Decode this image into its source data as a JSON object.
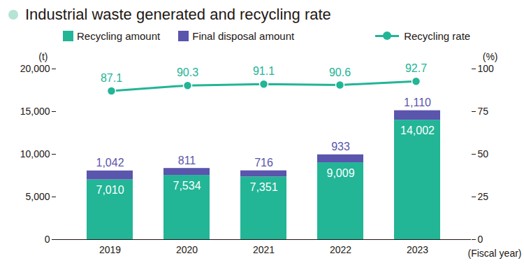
{
  "chart_data": {
    "type": "bar",
    "title": "Industrial waste generated and recycling rate",
    "stacked": true,
    "data_labels": true,
    "legend": "top",
    "grid": false,
    "categories": [
      "2019",
      "2020",
      "2021",
      "2022",
      "2023"
    ],
    "x_label": "(Fiscal year)",
    "y_label": "(t)",
    "y2_label": "(%)",
    "ylim": [
      0,
      20000
    ],
    "yticks": [
      0,
      {
        "value": 5000,
        "label": "5,000"
      },
      {
        "value": 10000,
        "label": "10,000"
      },
      {
        "value": 15000,
        "label": "15,000"
      },
      {
        "value": 20000,
        "label": "20,000"
      }
    ],
    "y2lim": [
      0,
      100
    ],
    "y2ticks": [
      0,
      25,
      50,
      75,
      100
    ],
    "series": [
      {
        "name": "Recycling amount",
        "type": "bar",
        "color": "#22b596",
        "values": [
          7010,
          7534,
          7351,
          9009,
          14002
        ],
        "value_labels": [
          "7,010",
          "7,534",
          "7,351",
          "9,009",
          "14,002"
        ]
      },
      {
        "name": "Final disposal amount",
        "type": "bar",
        "color": "#5a55ad",
        "values": [
          1042,
          811,
          716,
          933,
          1110
        ],
        "value_labels": [
          "1,042",
          "811",
          "716",
          "933",
          "1,110"
        ]
      },
      {
        "name": "Recycling rate",
        "type": "line",
        "axis": "y2",
        "color": "#22b596",
        "marker": "circle",
        "line_style": "solid",
        "values": [
          87.1,
          90.3,
          91.1,
          90.6,
          92.7
        ]
      }
    ]
  }
}
